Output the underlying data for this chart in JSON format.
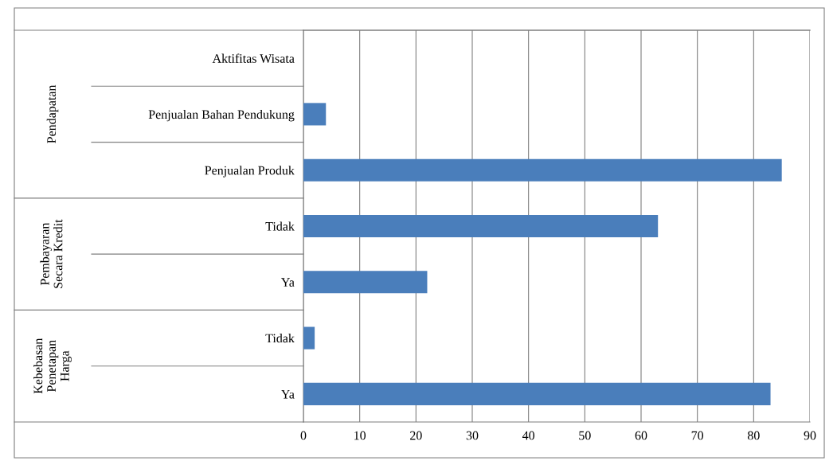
{
  "chart_data": {
    "type": "bar",
    "orientation": "horizontal",
    "categories": [
      "Aktifitas Wisata",
      "Penjualan Bahan Pendukung",
      "Penjualan Produk",
      "Tidak",
      "Ya",
      "Tidak",
      "Ya"
    ],
    "values": [
      0,
      4,
      85,
      63,
      22,
      2,
      83
    ],
    "color": "#4a7ebb",
    "xlim": [
      0,
      90
    ],
    "xticks": [
      0,
      10,
      20,
      30,
      40,
      50,
      60,
      70,
      80,
      90
    ],
    "grid": "x",
    "legend": false,
    "annotations": [
      "Pendapatan",
      "Pembayaran\nSecara Kredit",
      "Kebebasan\nPenetapan\nHarga"
    ]
  }
}
